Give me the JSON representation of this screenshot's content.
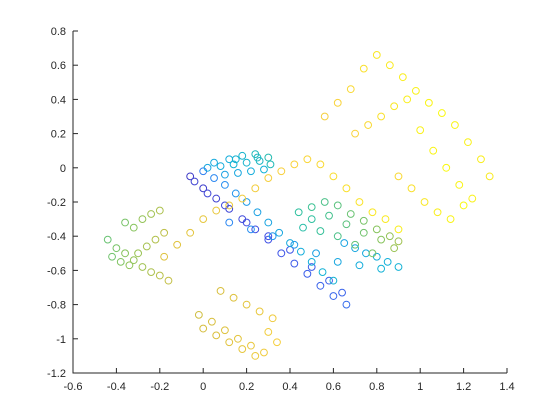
{
  "chart_data": {
    "type": "scatter",
    "title": "",
    "xlabel": "",
    "ylabel": "",
    "xlim": [
      -0.6,
      1.4
    ],
    "ylim": [
      -1.2,
      0.8
    ],
    "x_ticks": [
      -0.6,
      -0.4,
      -0.2,
      0,
      0.2,
      0.4,
      0.6,
      0.8,
      1,
      1.2,
      1.4
    ],
    "x_tick_labels": [
      "-0.6",
      "-0.4",
      "-0.2",
      "0",
      "0.2",
      "0.4",
      "0.6",
      "0.8",
      "1",
      "1.2",
      "1.4"
    ],
    "y_ticks": [
      -1.2,
      -1,
      -0.8,
      -0.6,
      -0.4,
      -0.2,
      0,
      0.2,
      0.4,
      0.6,
      0.8
    ],
    "y_tick_labels": [
      "-1.2",
      "-1",
      "-0.8",
      "-0.6",
      "-0.4",
      "-0.2",
      "0",
      "0.2",
      "0.4",
      "0.6",
      "0.8"
    ],
    "grid": false,
    "legend": "none",
    "marker": "open-circle",
    "colormap": "parula",
    "colormap_stops": [
      "#3e26a8",
      "#4154e8",
      "#2a8cf2",
      "#12b1d8",
      "#2ec09f",
      "#8bc45a",
      "#d5bd3e",
      "#f9d13e",
      "#f9fb0e"
    ],
    "series": [
      {
        "x": [
          -0.06,
          0.0,
          0.06,
          0.12,
          0.18,
          0.24,
          0.3,
          0.36,
          0.42,
          0.48,
          0.54,
          0.6,
          0.66,
          -0.04,
          0.02,
          0.1,
          0.2,
          0.3,
          0.4,
          0.5,
          0.58,
          0.64
        ],
        "y": [
          -0.05,
          -0.12,
          -0.18,
          -0.24,
          -0.3,
          -0.36,
          -0.42,
          -0.5,
          -0.56,
          -0.62,
          -0.69,
          -0.75,
          -0.8,
          -0.08,
          -0.15,
          -0.22,
          -0.32,
          -0.4,
          -0.48,
          -0.58,
          -0.66,
          -0.73
        ],
        "c": [
          0.06,
          0.07,
          0.08,
          0.09,
          0.1,
          0.11,
          0.12,
          0.13,
          0.14,
          0.15,
          0.16,
          0.17,
          0.18,
          0.08,
          0.09,
          0.1,
          0.11,
          0.12,
          0.13,
          0.14,
          0.15,
          0.16
        ]
      },
      {
        "x": [
          0.0,
          0.05,
          0.1,
          0.15,
          0.2,
          0.25,
          0.3,
          0.35,
          0.4,
          0.45,
          0.5,
          0.55,
          0.6,
          0.65,
          0.7,
          0.75,
          0.8,
          0.85,
          0.9,
          0.12,
          0.22,
          0.32,
          0.42,
          0.52,
          0.62,
          0.72,
          0.82
        ],
        "y": [
          -0.02,
          -0.06,
          -0.1,
          -0.15,
          -0.2,
          -0.26,
          -0.32,
          -0.38,
          -0.44,
          -0.49,
          -0.55,
          -0.61,
          -0.66,
          -0.44,
          -0.47,
          -0.5,
          -0.52,
          -0.55,
          -0.58,
          -0.32,
          -0.36,
          -0.4,
          -0.45,
          -0.5,
          -0.55,
          -0.57,
          -0.59
        ],
        "c": [
          0.22,
          0.24,
          0.26,
          0.28,
          0.3,
          0.32,
          0.33,
          0.34,
          0.35,
          0.36,
          0.37,
          0.38,
          0.39,
          0.33,
          0.34,
          0.35,
          0.36,
          0.37,
          0.38,
          0.24,
          0.26,
          0.28,
          0.3,
          0.32,
          0.34,
          0.36,
          0.38
        ]
      },
      {
        "x": [
          0.12,
          0.18,
          0.24,
          0.3,
          0.02,
          0.08,
          0.14,
          0.2,
          0.26,
          0.1,
          0.16,
          0.22,
          0.28,
          0.05,
          0.15,
          0.25,
          0.31
        ],
        "y": [
          0.05,
          0.07,
          0.08,
          0.06,
          0.0,
          0.01,
          0.02,
          0.03,
          0.04,
          -0.04,
          -0.03,
          -0.02,
          -0.01,
          0.03,
          0.05,
          0.06,
          0.02
        ],
        "c": [
          0.36,
          0.4,
          0.44,
          0.46,
          0.34,
          0.36,
          0.38,
          0.4,
          0.42,
          0.32,
          0.34,
          0.36,
          0.38,
          0.35,
          0.39,
          0.43,
          0.45
        ]
      },
      {
        "x": [
          0.44,
          0.5,
          0.56,
          0.62,
          0.68,
          0.74,
          0.8,
          0.86,
          0.9,
          0.5,
          0.58,
          0.66,
          0.74,
          0.82,
          0.88,
          0.46,
          0.54,
          0.62,
          0.7,
          0.78
        ],
        "y": [
          -0.26,
          -0.23,
          -0.2,
          -0.22,
          -0.27,
          -0.31,
          -0.36,
          -0.4,
          -0.43,
          -0.3,
          -0.28,
          -0.33,
          -0.38,
          -0.42,
          -0.47,
          -0.35,
          -0.37,
          -0.4,
          -0.45,
          -0.5
        ],
        "c": [
          0.5,
          0.52,
          0.54,
          0.56,
          0.58,
          0.6,
          0.62,
          0.64,
          0.66,
          0.5,
          0.53,
          0.56,
          0.59,
          0.62,
          0.65,
          0.48,
          0.51,
          0.54,
          0.57,
          0.6
        ]
      },
      {
        "x": [
          -0.44,
          -0.4,
          -0.36,
          -0.32,
          -0.28,
          -0.24,
          -0.2,
          -0.16,
          -0.42,
          -0.38,
          -0.34,
          -0.3,
          -0.26,
          -0.22,
          -0.18,
          -0.36,
          -0.32,
          -0.28,
          -0.24,
          -0.2
        ],
        "y": [
          -0.42,
          -0.47,
          -0.5,
          -0.54,
          -0.58,
          -0.61,
          -0.63,
          -0.66,
          -0.52,
          -0.55,
          -0.57,
          -0.5,
          -0.46,
          -0.42,
          -0.38,
          -0.32,
          -0.35,
          -0.3,
          -0.27,
          -0.25
        ],
        "c": [
          0.58,
          0.6,
          0.62,
          0.64,
          0.66,
          0.68,
          0.7,
          0.72,
          0.59,
          0.61,
          0.63,
          0.65,
          0.67,
          0.69,
          0.71,
          0.6,
          0.62,
          0.64,
          0.66,
          0.68
        ]
      },
      {
        "x": [
          -0.02,
          0.04,
          0.1,
          0.16,
          0.22,
          0.28,
          0.34,
          0.0,
          0.06,
          0.12,
          0.18,
          0.24,
          0.3,
          0.08,
          0.14,
          0.2,
          0.26,
          0.32
        ],
        "y": [
          -0.86,
          -0.9,
          -0.95,
          -1.0,
          -1.04,
          -1.08,
          -1.02,
          -0.94,
          -0.98,
          -1.02,
          -1.06,
          -1.1,
          -0.96,
          -0.72,
          -0.76,
          -0.8,
          -0.84,
          -0.88
        ],
        "c": [
          0.74,
          0.76,
          0.78,
          0.8,
          0.82,
          0.84,
          0.86,
          0.75,
          0.77,
          0.79,
          0.81,
          0.83,
          0.85,
          0.76,
          0.78,
          0.8,
          0.82,
          0.84
        ]
      },
      {
        "x": [
          -0.18,
          -0.12,
          -0.06,
          0.0,
          0.06,
          0.12,
          0.18,
          0.24,
          0.3,
          0.36,
          0.42,
          0.48,
          0.54,
          0.6,
          0.66,
          0.72,
          0.78,
          0.84,
          0.9
        ],
        "y": [
          -0.52,
          -0.45,
          -0.38,
          -0.3,
          -0.25,
          -0.22,
          -0.18,
          -0.12,
          -0.06,
          -0.02,
          0.02,
          0.05,
          0.02,
          -0.05,
          -0.12,
          -0.2,
          -0.26,
          -0.3,
          -0.36
        ],
        "c": [
          0.78,
          0.79,
          0.8,
          0.81,
          0.82,
          0.83,
          0.84,
          0.85,
          0.86,
          0.87,
          0.88,
          0.89,
          0.9,
          0.91,
          0.92,
          0.93,
          0.94,
          0.95,
          0.96
        ]
      },
      {
        "x": [
          0.56,
          0.62,
          0.68,
          0.74,
          0.8,
          0.86,
          0.92,
          0.98,
          1.04,
          1.1,
          1.16,
          1.22,
          1.28,
          1.32,
          0.7,
          0.76,
          0.82,
          0.88,
          0.94,
          1.0,
          1.06,
          1.12,
          1.18,
          1.24,
          0.9,
          0.96,
          1.02,
          1.08,
          1.14,
          1.2
        ],
        "y": [
          0.3,
          0.38,
          0.46,
          0.58,
          0.66,
          0.6,
          0.53,
          0.45,
          0.38,
          0.32,
          0.25,
          0.15,
          0.05,
          -0.05,
          0.2,
          0.25,
          0.3,
          0.36,
          0.4,
          0.22,
          0.1,
          0.0,
          -0.1,
          -0.18,
          -0.05,
          -0.12,
          -0.2,
          -0.26,
          -0.3,
          -0.22
        ],
        "c": [
          0.86,
          0.88,
          0.9,
          0.92,
          0.94,
          0.95,
          0.96,
          0.97,
          0.98,
          0.99,
          0.98,
          0.97,
          0.96,
          0.95,
          0.88,
          0.9,
          0.92,
          0.94,
          0.96,
          0.97,
          0.98,
          0.99,
          0.98,
          0.97,
          0.9,
          0.92,
          0.94,
          0.96,
          0.98,
          0.99
        ]
      }
    ]
  }
}
